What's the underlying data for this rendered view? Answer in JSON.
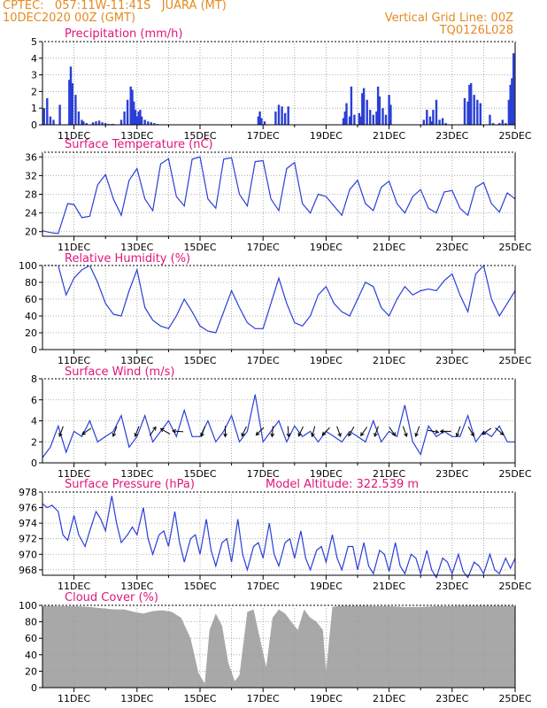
{
  "header": {
    "station_line": "CPTEC:   057:11W-11:41S   JUARA (MT)",
    "date_line": "10DEC2020 00Z (GMT)",
    "grid_note": "Vertical Grid Line: 00Z",
    "code": "TQ0126L028"
  },
  "colors": {
    "header": "#e58a1f",
    "panel_title": "#e0157a",
    "series": "#2a3fd6",
    "cloud_fill": "#a8a8a8",
    "wind_arrow": "#000000",
    "grid": "#9a9a9a"
  },
  "time_axis": {
    "start": "10DEC2020 00Z",
    "end": "25DEC2020 00Z",
    "tick_labels": [
      "11DEC",
      "13DEC",
      "15DEC",
      "17DEC",
      "19DEC",
      "21DEC",
      "23DEC",
      "25DEC"
    ],
    "vertical_grid": "00Z daily"
  },
  "chart_data": [
    {
      "type": "bar",
      "title": "Precipitation (mm/h)",
      "ylim": [
        0,
        5
      ],
      "yticks": [
        0,
        1,
        2,
        3,
        4,
        5
      ],
      "grid": true,
      "x_unit": "days since 10DEC2020 00Z",
      "x": [
        0.05,
        0.15,
        0.25,
        0.35,
        0.55,
        0.85,
        0.9,
        0.95,
        1.05,
        1.15,
        1.25,
        1.3,
        1.4,
        1.6,
        1.7,
        1.8,
        1.9,
        2.0,
        2.1,
        2.2,
        2.25,
        2.5,
        2.6,
        2.7,
        2.8,
        2.85,
        2.9,
        2.95,
        3.0,
        3.05,
        3.1,
        3.15,
        3.25,
        3.35,
        3.45,
        3.55,
        3.65,
        6.85,
        6.9,
        6.95,
        7.05,
        7.4,
        7.5,
        7.6,
        7.7,
        7.8,
        9.55,
        9.6,
        9.65,
        9.75,
        9.8,
        9.9,
        10.05,
        10.1,
        10.15,
        10.2,
        10.3,
        10.4,
        10.5,
        10.6,
        10.65,
        10.7,
        10.8,
        10.9,
        11.0,
        11.05,
        12.1,
        12.2,
        12.3,
        12.35,
        12.4,
        12.5,
        12.6,
        12.7,
        12.8,
        13.4,
        13.5,
        13.55,
        13.6,
        13.7,
        13.8,
        13.9,
        14.2,
        14.3,
        14.5,
        14.6,
        14.7,
        14.8,
        14.85,
        14.9,
        14.95
      ],
      "values": [
        1.0,
        1.6,
        0.5,
        0.3,
        1.2,
        2.7,
        3.5,
        2.5,
        1.8,
        0.8,
        0.3,
        0.2,
        0.1,
        0.15,
        0.2,
        0.25,
        0.15,
        0.1,
        0.05,
        0.05,
        0.05,
        0.3,
        0.8,
        1.5,
        2.3,
        2.1,
        1.4,
        0.9,
        0.5,
        0.8,
        0.9,
        0.5,
        0.3,
        0.2,
        0.15,
        0.1,
        0.05,
        0.5,
        0.8,
        0.4,
        0.2,
        0.8,
        1.2,
        1.1,
        0.7,
        1.1,
        0.4,
        0.8,
        1.3,
        0.5,
        2.3,
        0.6,
        0.7,
        0.5,
        1.9,
        2.2,
        1.5,
        0.9,
        0.6,
        0.8,
        2.3,
        1.7,
        1.0,
        0.6,
        1.8,
        1.2,
        0.3,
        0.9,
        0.5,
        0.2,
        0.9,
        1.5,
        0.3,
        0.4,
        0.1,
        1.6,
        1.4,
        2.4,
        2.5,
        1.8,
        1.5,
        1.3,
        0.6,
        0.1,
        0.1,
        0.3,
        0.1,
        1.5,
        2.4,
        2.8,
        4.3
      ]
    },
    {
      "type": "line",
      "title": "Surface Temperature (nC)",
      "ylim": [
        19,
        37
      ],
      "yticks": [
        20,
        24,
        28,
        32,
        36
      ],
      "grid": true,
      "x_unit": "days since 10DEC2020 00Z",
      "x": [
        0.0,
        0.25,
        0.5,
        0.8,
        1.0,
        1.25,
        1.5,
        1.75,
        2.0,
        2.25,
        2.5,
        2.75,
        3.0,
        3.25,
        3.5,
        3.75,
        4.0,
        4.25,
        4.5,
        4.75,
        5.0,
        5.25,
        5.5,
        5.75,
        6.0,
        6.25,
        6.5,
        6.75,
        7.0,
        7.25,
        7.5,
        7.75,
        8.0,
        8.25,
        8.5,
        8.75,
        9.0,
        9.25,
        9.5,
        9.75,
        10.0,
        10.25,
        10.5,
        10.75,
        11.0,
        11.25,
        11.5,
        11.75,
        12.0,
        12.25,
        12.5,
        12.75,
        13.0,
        13.25,
        13.5,
        13.75,
        14.0,
        14.25,
        14.5,
        14.75,
        15.0
      ],
      "values": [
        20.2,
        19.8,
        19.6,
        26.0,
        25.8,
        23.0,
        23.3,
        30.0,
        32.2,
        27.0,
        23.5,
        31.0,
        33.5,
        27.0,
        24.5,
        34.5,
        35.6,
        27.5,
        25.5,
        35.5,
        36.0,
        27.0,
        25.0,
        35.5,
        35.8,
        28.0,
        25.5,
        35.0,
        35.2,
        27.0,
        24.5,
        33.5,
        34.8,
        26.0,
        24.0,
        28.0,
        27.5,
        25.5,
        23.5,
        29.0,
        31.0,
        26.0,
        24.5,
        29.5,
        30.8,
        26.0,
        24.0,
        27.5,
        29.0,
        25.0,
        24.0,
        28.5,
        28.8,
        25.0,
        23.5,
        29.5,
        30.5,
        26.0,
        24.2,
        28.3,
        27.0
      ]
    },
    {
      "type": "line",
      "title": "Relative Humidity (%)",
      "ylim": [
        0,
        100
      ],
      "yticks": [
        0,
        20,
        40,
        60,
        80,
        100
      ],
      "grid": true,
      "x_unit": "days since 10DEC2020 00Z",
      "x": [
        0.0,
        0.25,
        0.5,
        0.75,
        1.0,
        1.25,
        1.5,
        1.75,
        2.0,
        2.25,
        2.5,
        2.75,
        3.0,
        3.25,
        3.5,
        3.75,
        4.0,
        4.25,
        4.5,
        4.75,
        5.0,
        5.25,
        5.5,
        5.75,
        6.0,
        6.25,
        6.5,
        6.75,
        7.0,
        7.25,
        7.5,
        7.75,
        8.0,
        8.25,
        8.5,
        8.75,
        9.0,
        9.25,
        9.5,
        9.75,
        10.0,
        10.25,
        10.5,
        10.75,
        11.0,
        11.25,
        11.5,
        11.75,
        12.0,
        12.25,
        12.5,
        12.75,
        13.0,
        13.25,
        13.5,
        13.75,
        14.0,
        14.25,
        14.5,
        14.75,
        15.0
      ],
      "values": [
        100,
        100,
        100,
        65,
        85,
        95,
        100,
        80,
        55,
        42,
        40,
        70,
        95,
        50,
        35,
        28,
        25,
        40,
        60,
        45,
        28,
        22,
        20,
        45,
        70,
        50,
        32,
        25,
        25,
        55,
        85,
        55,
        32,
        28,
        40,
        65,
        75,
        55,
        45,
        40,
        60,
        80,
        75,
        50,
        40,
        60,
        75,
        65,
        70,
        72,
        70,
        82,
        90,
        65,
        45,
        90,
        100,
        60,
        40,
        55,
        70
      ]
    },
    {
      "type": "line",
      "title": "Surface Wind (m/s)",
      "ylim": [
        0,
        8
      ],
      "yticks": [
        0,
        2,
        4,
        6,
        8
      ],
      "grid": true,
      "x_unit": "days since 10DEC2020 00Z",
      "x": [
        0.0,
        0.25,
        0.5,
        0.75,
        1.0,
        1.25,
        1.5,
        1.75,
        2.0,
        2.25,
        2.5,
        2.75,
        3.0,
        3.25,
        3.5,
        3.75,
        4.0,
        4.25,
        4.5,
        4.75,
        5.0,
        5.25,
        5.5,
        5.75,
        6.0,
        6.25,
        6.5,
        6.75,
        7.0,
        7.25,
        7.5,
        7.75,
        8.0,
        8.25,
        8.5,
        8.75,
        9.0,
        9.25,
        9.5,
        9.75,
        10.0,
        10.25,
        10.5,
        10.75,
        11.0,
        11.25,
        11.5,
        11.75,
        12.0,
        12.25,
        12.5,
        12.75,
        13.0,
        13.25,
        13.5,
        13.75,
        14.0,
        14.25,
        14.5,
        14.75,
        15.0
      ],
      "values": [
        0.5,
        1.5,
        3.5,
        1.0,
        3.0,
        2.5,
        4.0,
        2.0,
        2.5,
        3.0,
        4.5,
        1.5,
        2.5,
        4.5,
        2.0,
        3.0,
        4.0,
        2.5,
        5.0,
        2.5,
        2.5,
        4.0,
        2.0,
        3.0,
        4.5,
        2.0,
        3.0,
        6.5,
        2.0,
        3.0,
        4.0,
        2.0,
        3.5,
        2.5,
        3.0,
        2.0,
        3.0,
        2.5,
        2.0,
        3.0,
        2.5,
        2.0,
        4.0,
        2.0,
        3.0,
        2.5,
        5.5,
        2.0,
        0.8,
        3.5,
        2.5,
        3.0,
        2.5,
        2.5,
        4.5,
        2.0,
        3.0,
        2.5,
        3.5,
        2.0,
        2.0
      ],
      "arrows_x": [
        0.6,
        1.4,
        2.3,
        3.0,
        3.5,
        3.9,
        4.3,
        5.1,
        5.8,
        6.4,
        6.9,
        7.3,
        7.8,
        8.2,
        8.6,
        9.0,
        9.4,
        9.8,
        10.2,
        10.6,
        11.1,
        11.5,
        11.9,
        12.4,
        12.8,
        13.2,
        13.6,
        14.1,
        14.5
      ],
      "arrows_dir_deg": [
        200,
        235,
        200,
        200,
        35,
        300,
        275,
        200,
        180,
        205,
        225,
        185,
        175,
        205,
        195,
        225,
        160,
        210,
        215,
        200,
        145,
        160,
        200,
        100,
        270,
        200,
        150,
        235,
        130
      ]
    },
    {
      "type": "line",
      "title": "Surface Pressure (hPa)",
      "annotation": "Model Altitude: 322.539 m",
      "ylim": [
        967.3,
        978
      ],
      "yticks": [
        968,
        970,
        972,
        974,
        976,
        978
      ],
      "grid": true,
      "x_unit": "days since 10DEC2020 00Z",
      "x": [
        0.0,
        0.15,
        0.3,
        0.5,
        0.65,
        0.8,
        1.0,
        1.15,
        1.35,
        1.5,
        1.7,
        1.85,
        2.0,
        2.2,
        2.35,
        2.5,
        2.7,
        2.85,
        3.0,
        3.2,
        3.35,
        3.5,
        3.7,
        3.85,
        4.0,
        4.2,
        4.35,
        4.5,
        4.7,
        4.85,
        5.0,
        5.2,
        5.35,
        5.5,
        5.7,
        5.85,
        6.0,
        6.2,
        6.35,
        6.5,
        6.7,
        6.85,
        7.0,
        7.2,
        7.35,
        7.5,
        7.7,
        7.85,
        8.0,
        8.2,
        8.35,
        8.5,
        8.7,
        8.85,
        9.0,
        9.2,
        9.35,
        9.5,
        9.7,
        9.85,
        10.0,
        10.2,
        10.35,
        10.5,
        10.7,
        10.85,
        11.0,
        11.2,
        11.35,
        11.5,
        11.7,
        11.85,
        12.0,
        12.2,
        12.35,
        12.5,
        12.7,
        12.85,
        13.0,
        13.2,
        13.35,
        13.5,
        13.7,
        13.85,
        14.0,
        14.2,
        14.35,
        14.5,
        14.7,
        14.85,
        15.0
      ],
      "values": [
        976.5,
        976.0,
        976.3,
        975.5,
        972.5,
        971.8,
        975.0,
        972.5,
        971.0,
        973.0,
        975.5,
        974.5,
        973.0,
        977.5,
        974.0,
        971.5,
        972.5,
        973.5,
        972.5,
        976.0,
        972.0,
        970.0,
        972.5,
        973.0,
        971.0,
        975.5,
        971.5,
        969.0,
        972.0,
        972.5,
        970.0,
        974.5,
        970.5,
        968.5,
        971.5,
        972.0,
        969.0,
        974.5,
        970.0,
        968.0,
        971.0,
        971.5,
        969.5,
        974.0,
        970.0,
        968.5,
        971.5,
        972.0,
        969.5,
        973.0,
        969.5,
        968.0,
        970.5,
        971.0,
        969.0,
        972.5,
        969.5,
        968.0,
        971.0,
        971.0,
        968.0,
        971.5,
        968.5,
        967.5,
        970.5,
        970.0,
        967.8,
        971.5,
        968.5,
        967.5,
        970.0,
        969.5,
        967.5,
        970.5,
        968.0,
        967.0,
        969.5,
        969.0,
        967.5,
        970.0,
        967.8,
        967.0,
        969.0,
        968.5,
        967.5,
        970.0,
        968.0,
        967.5,
        969.5,
        968.2,
        969.5
      ]
    },
    {
      "type": "area",
      "title": "Cloud Cover (%)",
      "ylim": [
        0,
        100
      ],
      "yticks": [
        0,
        20,
        40,
        60,
        80,
        100
      ],
      "grid": true,
      "x_unit": "days since 10DEC2020 00Z",
      "x": [
        0.0,
        0.5,
        1.0,
        1.5,
        2.0,
        2.3,
        2.6,
        2.9,
        3.2,
        3.5,
        3.8,
        4.1,
        4.4,
        4.7,
        4.95,
        5.15,
        5.3,
        5.5,
        5.7,
        5.9,
        6.1,
        6.25,
        6.5,
        6.7,
        6.9,
        7.1,
        7.3,
        7.5,
        7.7,
        7.9,
        8.1,
        8.3,
        8.5,
        8.7,
        8.9,
        9.0,
        9.2,
        9.5,
        10.0,
        10.5,
        11.0,
        11.5,
        12.0,
        12.5,
        13.0,
        13.5,
        14.0,
        14.5,
        15.0
      ],
      "values": [
        100,
        99,
        99,
        98,
        96,
        95,
        95,
        92,
        90,
        93,
        94,
        92,
        85,
        60,
        18,
        5,
        70,
        90,
        75,
        30,
        8,
        15,
        92,
        95,
        60,
        25,
        85,
        95,
        90,
        80,
        70,
        95,
        85,
        80,
        70,
        20,
        98,
        100,
        100,
        99,
        99,
        98,
        98,
        99,
        99,
        100,
        100,
        100,
        100
      ]
    }
  ]
}
